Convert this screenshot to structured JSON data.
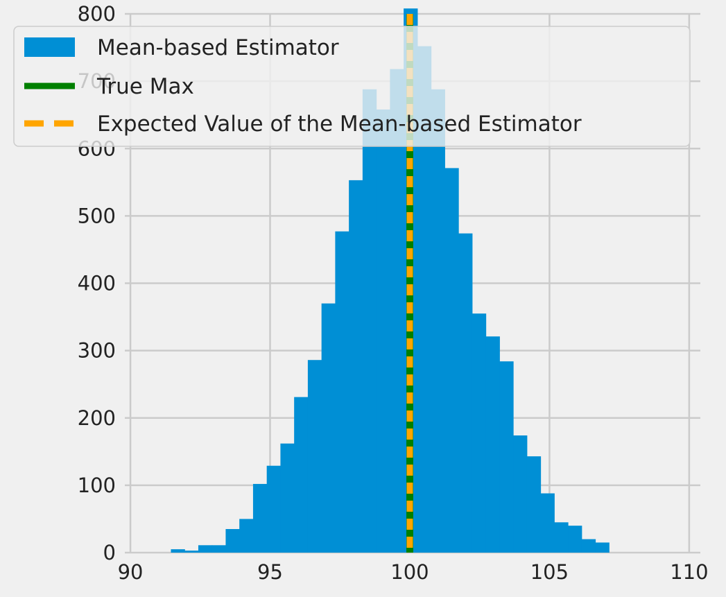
{
  "chart_data": {
    "type": "bar",
    "title": "",
    "xlabel": "",
    "ylabel": "",
    "xlim": [
      89.8,
      110.4
    ],
    "ylim": [
      0,
      800
    ],
    "grid": true,
    "legend_placement": "top-left",
    "x_ticks": [
      90,
      95,
      100,
      105,
      110
    ],
    "y_ticks": [
      0,
      100,
      200,
      300,
      400,
      500,
      600,
      700,
      800
    ],
    "histogram": {
      "name": "Mean-based Estimator",
      "color": "#008fd5",
      "bin_edges": [
        91.45,
        91.94,
        92.43,
        92.92,
        93.41,
        93.9,
        94.39,
        94.88,
        95.37,
        95.86,
        96.35,
        96.84,
        97.33,
        97.82,
        98.31,
        98.8,
        99.29,
        99.78,
        100.27,
        100.76,
        101.25,
        101.74,
        102.23,
        102.72,
        103.21,
        103.7,
        104.19,
        104.68,
        105.17,
        105.66,
        106.15,
        106.64,
        107.13,
        107.62
      ],
      "counts": [
        5,
        3,
        11,
        11,
        35,
        50,
        102,
        129,
        162,
        231,
        286,
        370,
        477,
        553,
        688,
        658,
        718,
        808,
        752,
        688,
        571,
        474,
        355,
        321,
        284,
        174,
        143,
        88,
        45,
        40,
        20,
        15,
        0
      ]
    },
    "vlines": [
      {
        "name": "True Max",
        "x": 100,
        "color": "#008000",
        "style": "solid"
      },
      {
        "name": "Expected Value of the Mean-based Estimator",
        "x": 100,
        "color": "#ffa500",
        "style": "dashed"
      }
    ],
    "legend": [
      {
        "label": "Mean-based Estimator",
        "kind": "patch",
        "color": "#008fd5"
      },
      {
        "label": "True Max",
        "kind": "line",
        "color": "#008000"
      },
      {
        "label": "Expected Value of the Mean-based Estimator",
        "kind": "dashed-line",
        "color": "#ffa500"
      }
    ]
  }
}
